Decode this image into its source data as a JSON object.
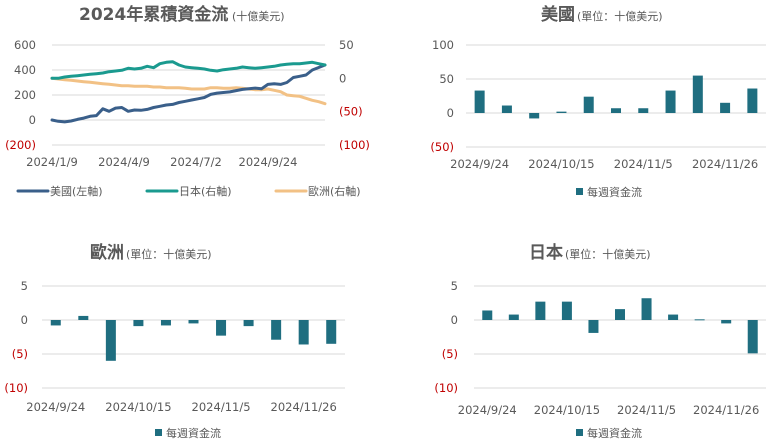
{
  "chart_data": [
    {
      "type": "line",
      "title": "2024年累積資金流",
      "subtitle": "(十億美元)",
      "x_ticks": [
        "2024/1/9",
        "2024/4/9",
        "2024/7/2",
        "2024/9/24"
      ],
      "left_ticks": [
        "600",
        "400",
        "200",
        "0",
        "(200)"
      ],
      "right_ticks": [
        "50",
        "0",
        "(50)",
        "(100)"
      ],
      "ylim_left": [
        -200,
        600
      ],
      "ylim_right": [
        -100,
        50
      ],
      "series": [
        {
          "name": "美國(左軸)",
          "axis": "left",
          "color": "#3a5f8a",
          "values": [
            0,
            -10,
            -15,
            -8,
            5,
            15,
            30,
            35,
            90,
            70,
            95,
            100,
            70,
            80,
            78,
            85,
            100,
            110,
            120,
            125,
            140,
            150,
            160,
            170,
            180,
            205,
            215,
            220,
            225,
            235,
            245,
            250,
            255,
            250,
            285,
            290,
            285,
            300,
            340,
            350,
            360,
            400,
            420,
            440
          ]
        },
        {
          "name": "日本(右軸)",
          "axis": "right",
          "color": "#1a9a8f",
          "values": [
            0,
            0,
            2,
            3,
            4,
            5,
            6,
            7,
            8,
            10,
            11,
            12,
            15,
            14,
            15,
            18,
            16,
            22,
            24,
            25,
            20,
            17,
            16,
            15,
            14,
            12,
            11,
            13,
            14,
            15,
            17,
            16,
            15,
            16,
            17,
            18,
            20,
            21,
            22,
            22,
            23,
            24,
            22,
            20
          ]
        },
        {
          "name": "歐洲(右軸)",
          "axis": "right",
          "color": "#f2c185",
          "values": [
            0,
            -1,
            -2,
            -3,
            -4,
            -5,
            -6,
            -7,
            -8,
            -9,
            -10,
            -11,
            -11,
            -12,
            -12,
            -12,
            -13,
            -13,
            -14,
            -14,
            -14,
            -15,
            -16,
            -16,
            -16,
            -14,
            -14,
            -15,
            -15,
            -14,
            -15,
            -16,
            -17,
            -17,
            -16,
            -18,
            -20,
            -25,
            -26,
            -27,
            -30,
            -33,
            -35,
            -38
          ]
        }
      ],
      "legend_position": "bottom"
    },
    {
      "type": "bar",
      "title": "美國",
      "subtitle": "(單位：十億美元)",
      "x_ticks": [
        "2024/9/24",
        "2024/10/15",
        "2024/11/5",
        "2024/11/26"
      ],
      "y_ticks": [
        "100",
        "50",
        "0",
        "(50)"
      ],
      "ylim": [
        -50,
        100
      ],
      "values": [
        33,
        11,
        -8,
        2,
        24,
        7,
        7,
        33,
        55,
        15,
        36
      ],
      "legend": "每週資金流",
      "color": "#1f6e80"
    },
    {
      "type": "bar",
      "title": "歐洲",
      "subtitle": "(單位：十億美元)",
      "x_ticks": [
        "2024/9/24",
        "2024/10/15",
        "2024/11/5",
        "2024/11/26"
      ],
      "y_ticks": [
        "5",
        "0",
        "(5)",
        "(10)"
      ],
      "ylim": [
        -10,
        5
      ],
      "values": [
        -0.8,
        0.6,
        -6.0,
        -0.9,
        -0.8,
        -0.5,
        -2.3,
        -0.9,
        -2.9,
        -3.6,
        -3.5
      ],
      "legend": "每週資金流",
      "color": "#1f6e80"
    },
    {
      "type": "bar",
      "title": "日本",
      "subtitle": "(單位：十億美元)",
      "x_ticks": [
        "2024/9/24",
        "2024/10/15",
        "2024/11/5",
        "2024/11/26"
      ],
      "y_ticks": [
        "5",
        "0",
        "(5)",
        "(10)"
      ],
      "ylim": [
        -10,
        5
      ],
      "values": [
        1.4,
        0.8,
        2.7,
        2.7,
        -1.9,
        1.6,
        3.2,
        0.8,
        0.1,
        -0.5,
        -4.9
      ],
      "legend": "每週資金流",
      "color": "#1f6e80"
    }
  ]
}
